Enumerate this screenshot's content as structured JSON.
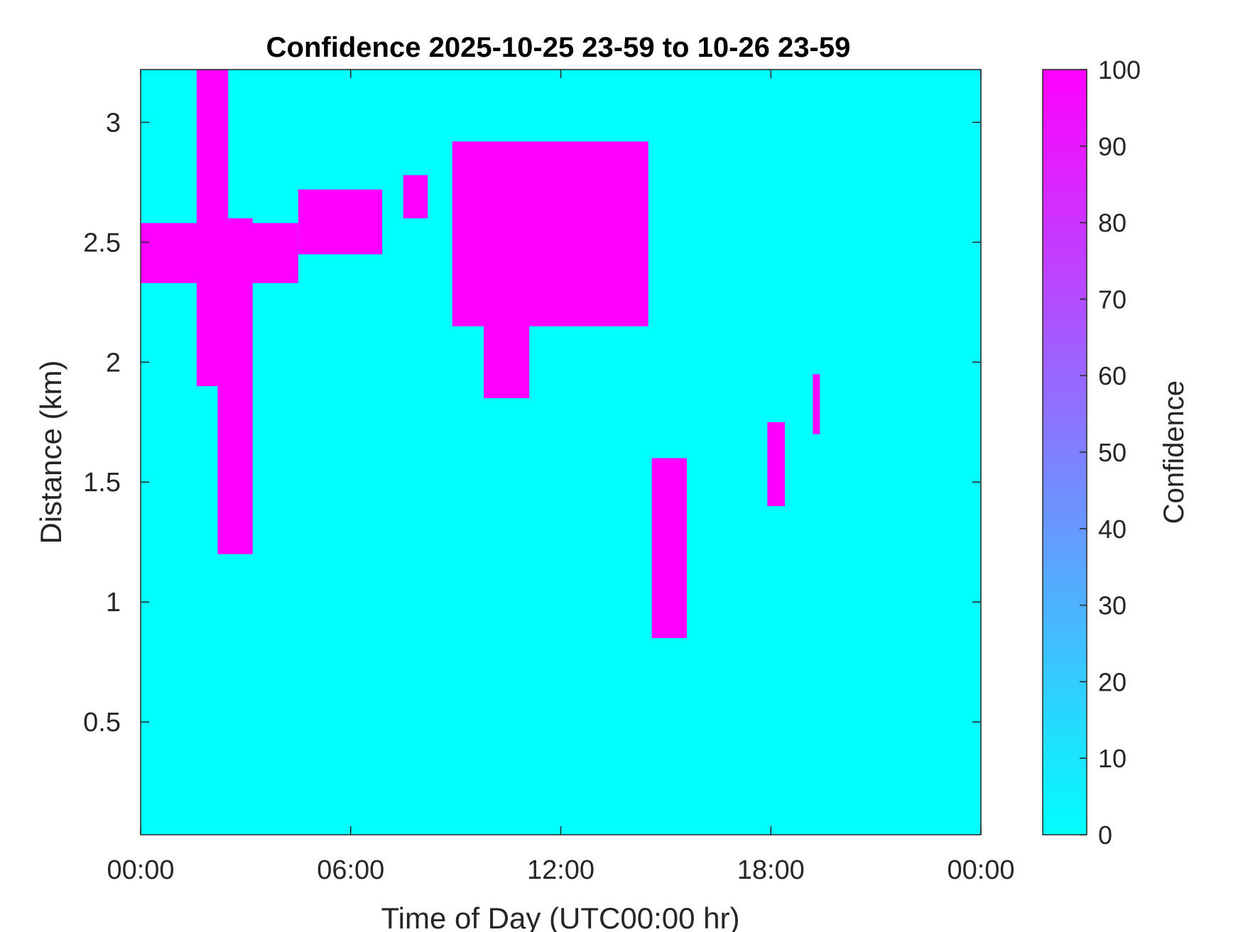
{
  "chart_data": {
    "type": "heatmap",
    "title": "Confidence 2025-10-25 23-59 to 10-26 23-59",
    "xlabel": "Time of Day (UTC00:00 hr)",
    "ylabel": "Distance (km)",
    "xlim": [
      0,
      24
    ],
    "ylim": [
      0.03,
      3.22
    ],
    "xticks": [
      0,
      6,
      12,
      18,
      24
    ],
    "xtick_labels": [
      "00:00",
      "06:00",
      "12:00",
      "18:00",
      "00:00"
    ],
    "yticks": [
      0.5,
      1,
      1.5,
      2,
      2.5,
      3
    ],
    "ytick_labels": [
      "0.5",
      "1",
      "1.5",
      "2",
      "2.5",
      "3"
    ],
    "colorbar": {
      "label": "Confidence",
      "range": [
        0,
        100
      ],
      "ticks": [
        0,
        10,
        20,
        30,
        40,
        50,
        60,
        70,
        80,
        90,
        100
      ],
      "tick_labels": [
        "0",
        "10",
        "20",
        "30",
        "40",
        "50",
        "60",
        "70",
        "80",
        "90",
        "100"
      ],
      "color_low": "#00FFFF",
      "color_high": "#FF00FF"
    },
    "background_value": 0,
    "high_value": 100,
    "regions_high_confidence": [
      {
        "x": [
          0.0,
          4.5
        ],
        "y": [
          2.33,
          2.58
        ]
      },
      {
        "x": [
          4.5,
          6.9
        ],
        "y": [
          2.45,
          2.72
        ]
      },
      {
        "x": [
          1.6,
          2.5
        ],
        "y": [
          1.9,
          3.22
        ]
      },
      {
        "x": [
          2.2,
          3.2
        ],
        "y": [
          1.2,
          2.6
        ]
      },
      {
        "x": [
          7.5,
          8.2
        ],
        "y": [
          2.6,
          2.78
        ]
      },
      {
        "x": [
          8.9,
          14.5
        ],
        "y": [
          2.15,
          2.92
        ]
      },
      {
        "x": [
          9.8,
          11.1
        ],
        "y": [
          1.85,
          2.35
        ]
      },
      {
        "x": [
          14.6,
          15.6
        ],
        "y": [
          0.85,
          1.6
        ]
      },
      {
        "x": [
          17.9,
          18.4
        ],
        "y": [
          1.4,
          1.75
        ]
      },
      {
        "x": [
          19.2,
          19.4
        ],
        "y": [
          1.7,
          1.95
        ]
      }
    ]
  }
}
